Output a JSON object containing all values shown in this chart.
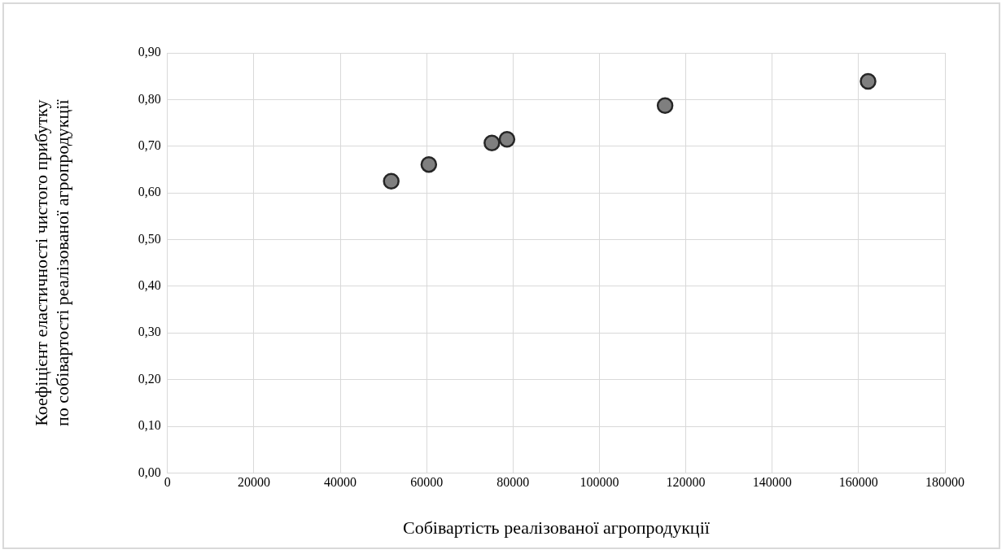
{
  "chart_data": {
    "type": "scatter",
    "xlabel": "Собівартість реалізованої агропродукції",
    "ylabel": "Коефіцієнт еластичності чистого прибутку\nпо собівартості реалізованої агропродукції",
    "series": [
      {
        "color": "#7f7f7f",
        "x": [
          51800,
          60500,
          75100,
          78600,
          115200,
          162200
        ],
        "values": [
          0.625,
          0.661,
          0.707,
          0.715,
          0.787,
          0.839
        ]
      }
    ],
    "marker": "circle",
    "xlim": [
      0,
      180000
    ],
    "xticks": [
      0,
      20000,
      40000,
      60000,
      80000,
      100000,
      120000,
      140000,
      160000,
      180000
    ],
    "ylim": [
      0,
      0.9
    ],
    "yticks": [
      {
        "value": 0,
        "label": "0,00"
      },
      {
        "value": 0.1,
        "label": "0,10"
      },
      {
        "value": 0.2,
        "label": "0,20"
      },
      {
        "value": 0.3,
        "label": "0,30"
      },
      {
        "value": 0.4,
        "label": "0,40"
      },
      {
        "value": 0.5,
        "label": "0,50"
      },
      {
        "value": 0.6,
        "label": "0,60"
      },
      {
        "value": 0.7,
        "label": "0,70"
      },
      {
        "value": 0.8,
        "label": "0,80"
      },
      {
        "value": 0.9,
        "label": "0,90"
      }
    ],
    "grid": true,
    "legend": false
  }
}
